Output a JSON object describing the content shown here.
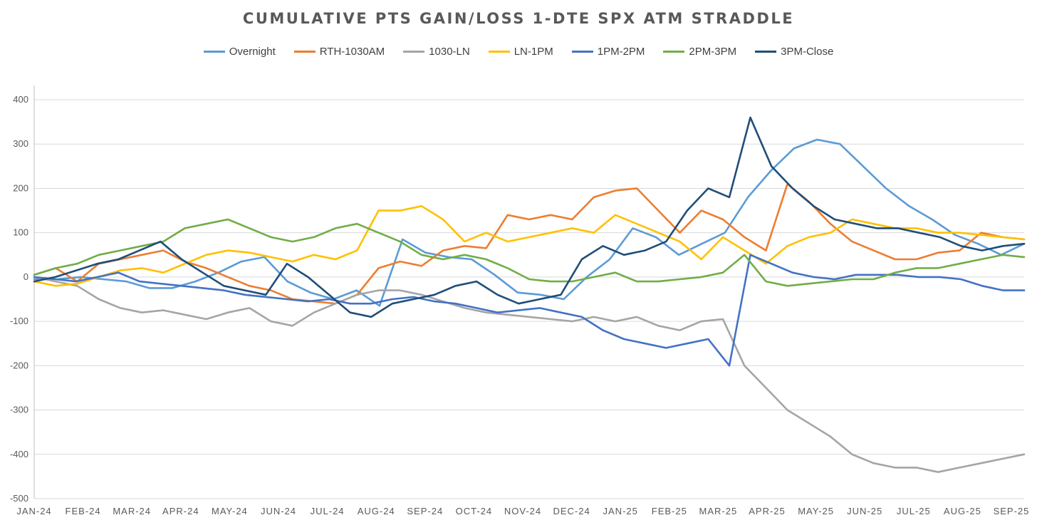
{
  "chart_data": {
    "type": "line",
    "title": "CUMULATIVE PTS GAIN/LOSS 1-DTE SPX ATM STRADDLE",
    "xlabel": "",
    "ylabel": "",
    "ylim": [
      -500,
      400
    ],
    "yticks": [
      400,
      300,
      200,
      100,
      0,
      -100,
      -200,
      -300,
      -400,
      -500
    ],
    "xticks": [
      "JAN-24",
      "FEB-24",
      "MAR-24",
      "APR-24",
      "MAY-24",
      "JUN-24",
      "JUL-24",
      "AUG-24",
      "SEP-24",
      "OCT-24",
      "NOV-24",
      "DEC-24",
      "JAN-25",
      "FEB-25",
      "MAR-25",
      "APR-25",
      "MAY-25",
      "JUN-25",
      "JUL-25",
      "AUG-25",
      "SEP-25"
    ],
    "grid": true,
    "legend_position": "top",
    "series": [
      {
        "name": "Overnight",
        "color": "#5B9BD5",
        "values": [
          -5,
          -5,
          0,
          -5,
          -10,
          -25,
          -25,
          -10,
          10,
          35,
          45,
          -10,
          -35,
          -50,
          -30,
          -65,
          85,
          55,
          45,
          40,
          5,
          -35,
          -40,
          -50,
          0,
          40,
          110,
          90,
          50,
          75,
          100,
          180,
          240,
          290,
          310,
          300,
          250,
          200,
          160,
          130,
          95,
          75,
          50,
          75
        ]
      },
      {
        "name": "RTH-1030AM",
        "color": "#ED7D31",
        "values": [
          5,
          20,
          -10,
          30,
          40,
          50,
          60,
          35,
          20,
          0,
          -20,
          -30,
          -50,
          -55,
          -60,
          -40,
          20,
          35,
          25,
          60,
          70,
          65,
          140,
          130,
          140,
          130,
          180,
          195,
          200,
          150,
          100,
          150,
          130,
          90,
          60,
          210,
          170,
          120,
          80,
          60,
          40,
          40,
          55,
          60,
          100,
          90,
          85
        ]
      },
      {
        "name": "1030-LN",
        "color": "#A5A5A5",
        "values": [
          0,
          -10,
          -20,
          -50,
          -70,
          -80,
          -75,
          -85,
          -95,
          -80,
          -70,
          -100,
          -110,
          -80,
          -60,
          -40,
          -30,
          -30,
          -40,
          -55,
          -70,
          -80,
          -85,
          -90,
          -95,
          -100,
          -90,
          -100,
          -90,
          -110,
          -120,
          -100,
          -95,
          -200,
          -250,
          -300,
          -330,
          -360,
          -400,
          -420,
          -430,
          -430,
          -440,
          -430,
          -420,
          -410,
          -400
        ]
      },
      {
        "name": "LN-1PM",
        "color": "#FFC000",
        "values": [
          -10,
          -20,
          -15,
          0,
          15,
          20,
          10,
          30,
          50,
          60,
          55,
          45,
          35,
          50,
          40,
          60,
          150,
          150,
          160,
          130,
          80,
          100,
          80,
          90,
          100,
          110,
          100,
          140,
          120,
          100,
          80,
          40,
          90,
          60,
          30,
          70,
          90,
          100,
          130,
          120,
          110,
          110,
          100,
          100,
          95,
          90,
          85
        ]
      },
      {
        "name": "1PM-2PM",
        "color": "#4472C4",
        "values": [
          0,
          -5,
          -10,
          0,
          10,
          -10,
          -15,
          -20,
          -25,
          -30,
          -40,
          -45,
          -50,
          -55,
          -50,
          -60,
          -60,
          -50,
          -45,
          -55,
          -60,
          -70,
          -80,
          -75,
          -70,
          -80,
          -90,
          -120,
          -140,
          -150,
          -160,
          -150,
          -140,
          -200,
          50,
          30,
          10,
          0,
          -5,
          5,
          5,
          5,
          0,
          0,
          -5,
          -20,
          -30,
          -30
        ]
      },
      {
        "name": "2PM-3PM",
        "color": "#70AD47",
        "values": [
          5,
          20,
          30,
          50,
          60,
          70,
          80,
          110,
          120,
          130,
          110,
          90,
          80,
          90,
          110,
          120,
          100,
          80,
          50,
          40,
          50,
          40,
          20,
          -5,
          -10,
          -10,
          0,
          10,
          -10,
          -10,
          -5,
          0,
          10,
          50,
          -10,
          -20,
          -15,
          -10,
          -5,
          -5,
          10,
          20,
          20,
          30,
          40,
          50,
          45
        ]
      },
      {
        "name": "3PM-Close",
        "color": "#1F4E79",
        "values": [
          -10,
          0,
          15,
          30,
          40,
          60,
          80,
          40,
          10,
          -20,
          -30,
          -40,
          30,
          0,
          -40,
          -80,
          -90,
          -60,
          -50,
          -40,
          -20,
          -10,
          -40,
          -60,
          -50,
          -40,
          40,
          70,
          50,
          60,
          80,
          150,
          200,
          180,
          360,
          250,
          200,
          160,
          130,
          120,
          110,
          110,
          100,
          90,
          70,
          60,
          70,
          75
        ]
      }
    ]
  }
}
